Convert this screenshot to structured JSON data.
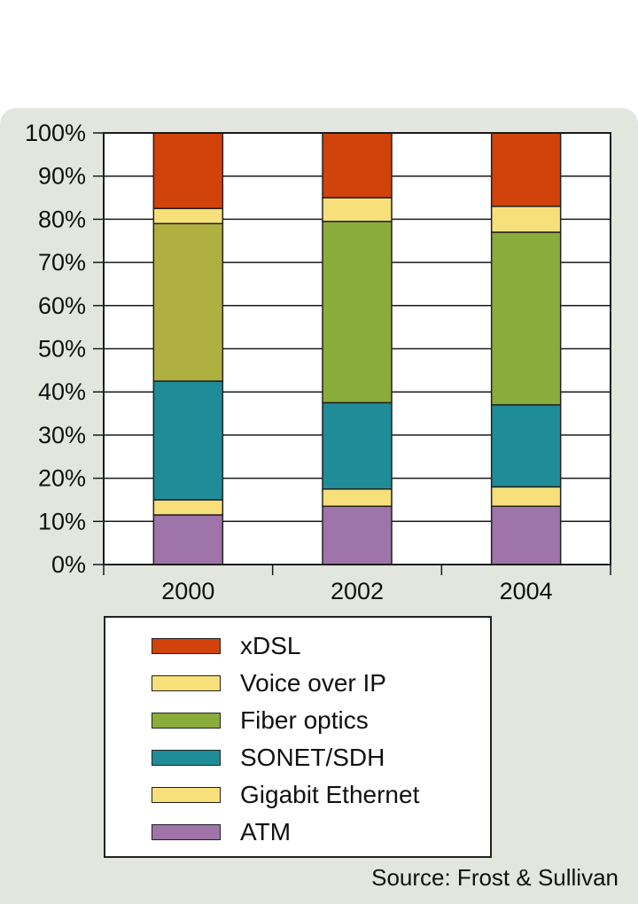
{
  "chart_data": {
    "type": "bar",
    "stacked": true,
    "categories": [
      "2000",
      "2002",
      "2004"
    ],
    "series": [
      {
        "name": "ATM",
        "color": "#9f74a9",
        "values": [
          11.5,
          13.5,
          13.5
        ]
      },
      {
        "name": "Gigabit Ethernet",
        "color": "#f7df7a",
        "values": [
          3.5,
          4.0,
          4.5
        ]
      },
      {
        "name": "SONET/SDH",
        "color": "#1f8d98",
        "values": [
          27.5,
          20.0,
          19.0
        ]
      },
      {
        "name": "Fiber optics",
        "color": "#b0b040",
        "colors": [
          "#b0b040",
          "#8aac3a",
          "#8aac3a"
        ],
        "values": [
          36.5,
          42.0,
          40.0
        ]
      },
      {
        "name": "Voice over IP",
        "color": "#f7df7a",
        "values": [
          3.5,
          5.5,
          6.0
        ]
      },
      {
        "name": "xDSL",
        "color": "#d2420b",
        "values": [
          17.5,
          15.0,
          17.0
        ]
      }
    ],
    "ylim": [
      0,
      100
    ],
    "yticks": [
      "0%",
      "10%",
      "20%",
      "30%",
      "40%",
      "50%",
      "60%",
      "70%",
      "80%",
      "90%",
      "100%"
    ],
    "grid": true,
    "legend_position": "below"
  },
  "legend": [
    {
      "label": "xDSL",
      "color": "#d2420b"
    },
    {
      "label": "Voice over IP",
      "color": "#f7df7a"
    },
    {
      "label": "Fiber optics",
      "color": "#8aac3a"
    },
    {
      "label": "SONET/SDH",
      "color": "#1f8d98"
    },
    {
      "label": "Gigabit Ethernet",
      "color": "#f7df7a"
    },
    {
      "label": "ATM",
      "color": "#9f74a9"
    }
  ],
  "source": "Source: Frost & Sullivan"
}
